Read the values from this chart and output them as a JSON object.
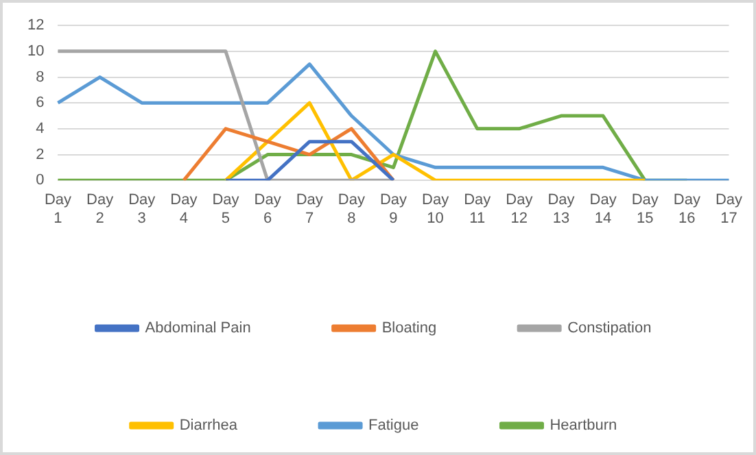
{
  "chart_data": {
    "type": "line",
    "categories": [
      "Day 1",
      "Day 2",
      "Day 3",
      "Day 4",
      "Day 5",
      "Day 6",
      "Day 7",
      "Day 8",
      "Day 9",
      "Day 10",
      "Day 11",
      "Day 12",
      "Day 13",
      "Day 14",
      "Day 15",
      "Day 16",
      "Day 17"
    ],
    "series": [
      {
        "name": "Abdominal Pain",
        "color": "#4472c4",
        "values": [
          null,
          null,
          null,
          null,
          0,
          0,
          3,
          3,
          0,
          null,
          null,
          null,
          null,
          null,
          null,
          null,
          null
        ]
      },
      {
        "name": "Bloating",
        "color": "#ed7d31",
        "values": [
          null,
          null,
          null,
          0,
          4,
          3,
          2,
          4,
          0,
          null,
          null,
          null,
          null,
          null,
          null,
          null,
          null
        ]
      },
      {
        "name": "Constipation",
        "color": "#a5a5a5",
        "values": [
          10,
          10,
          10,
          10,
          10,
          0,
          0,
          0,
          0,
          null,
          null,
          null,
          null,
          null,
          null,
          null,
          null
        ]
      },
      {
        "name": "Diarrhea",
        "color": "#ffc000",
        "values": [
          null,
          null,
          null,
          null,
          0,
          3,
          6,
          0,
          2,
          0,
          0,
          0,
          0,
          0,
          0,
          null,
          null
        ]
      },
      {
        "name": "Fatigue",
        "color": "#5b9bd5",
        "values": [
          6,
          8,
          6,
          6,
          6,
          6,
          9,
          5,
          2,
          1,
          1,
          1,
          1,
          1,
          0,
          0,
          0
        ]
      },
      {
        "name": "Heartburn",
        "color": "#70ad47",
        "values": [
          0,
          0,
          0,
          0,
          0,
          2,
          2,
          2,
          1,
          10,
          4,
          4,
          5,
          5,
          0,
          0,
          null
        ]
      }
    ],
    "ylim": [
      0,
      12
    ],
    "yticks": [
      0,
      2,
      4,
      6,
      8,
      10,
      12
    ],
    "grid": "y",
    "legend": "bottom",
    "marker": "none",
    "line_style": "solid"
  }
}
